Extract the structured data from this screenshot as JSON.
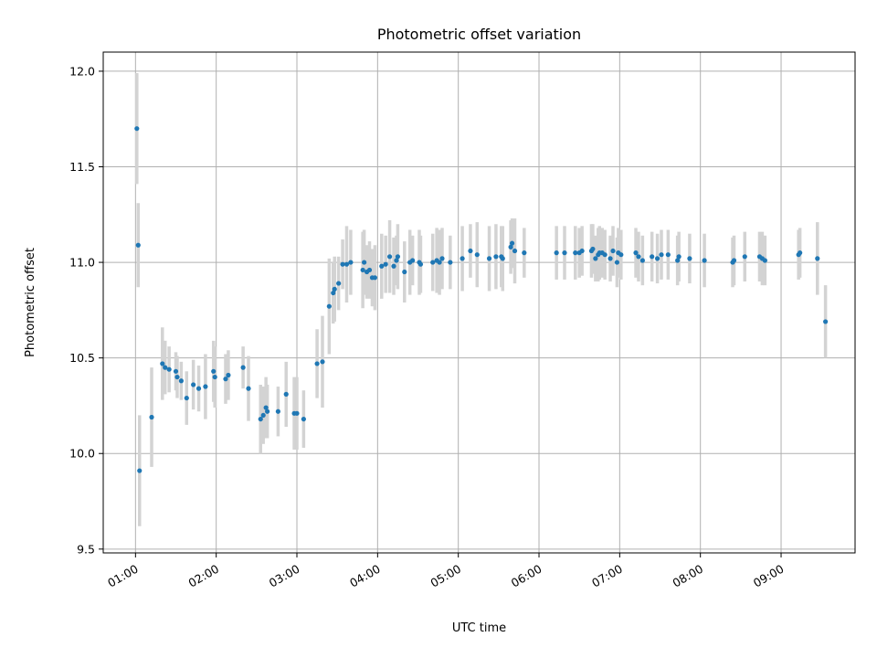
{
  "chart_data": {
    "type": "scatter",
    "title": "Photometric offset variation",
    "xlabel": "UTC time",
    "ylabel": "Photometric offset",
    "x_tick_labels": [
      "01:00",
      "02:00",
      "03:00",
      "04:00",
      "05:00",
      "06:00",
      "07:00",
      "08:00",
      "09:00"
    ],
    "y_tick_labels": [
      "9.5",
      "10.0",
      "10.5",
      "11.0",
      "11.5",
      "12.0"
    ],
    "xlim": [
      "00:36",
      "09:55"
    ],
    "ylim": [
      9.48,
      12.1
    ],
    "grid": true,
    "marker_color": "#1f77b4",
    "errorbar_color": "#d3d3d3",
    "points": [
      {
        "t": "01:01",
        "y": 11.7,
        "e": 0.29
      },
      {
        "t": "01:02",
        "y": 11.09,
        "e": 0.22
      },
      {
        "t": "01:03",
        "y": 9.91,
        "e": 0.29
      },
      {
        "t": "01:12",
        "y": 10.19,
        "e": 0.26
      },
      {
        "t": "01:20",
        "y": 10.47,
        "e": 0.19
      },
      {
        "t": "01:22",
        "y": 10.45,
        "e": 0.14
      },
      {
        "t": "01:25",
        "y": 10.44,
        "e": 0.12
      },
      {
        "t": "01:30",
        "y": 10.43,
        "e": 0.1
      },
      {
        "t": "01:31",
        "y": 10.4,
        "e": 0.11
      },
      {
        "t": "01:34",
        "y": 10.38,
        "e": 0.1
      },
      {
        "t": "01:38",
        "y": 10.29,
        "e": 0.14
      },
      {
        "t": "01:43",
        "y": 10.36,
        "e": 0.13
      },
      {
        "t": "01:47",
        "y": 10.34,
        "e": 0.12
      },
      {
        "t": "01:52",
        "y": 10.35,
        "e": 0.17
      },
      {
        "t": "01:58",
        "y": 10.43,
        "e": 0.16
      },
      {
        "t": "01:59",
        "y": 10.4,
        "e": 0.16
      },
      {
        "t": "02:07",
        "y": 10.39,
        "e": 0.13
      },
      {
        "t": "02:09",
        "y": 10.41,
        "e": 0.13
      },
      {
        "t": "02:20",
        "y": 10.45,
        "e": 0.11
      },
      {
        "t": "02:24",
        "y": 10.34,
        "e": 0.17
      },
      {
        "t": "02:33",
        "y": 10.18,
        "e": 0.18
      },
      {
        "t": "02:35",
        "y": 10.2,
        "e": 0.15
      },
      {
        "t": "02:37",
        "y": 10.24,
        "e": 0.16
      },
      {
        "t": "02:38",
        "y": 10.22,
        "e": 0.14
      },
      {
        "t": "02:46",
        "y": 10.22,
        "e": 0.13
      },
      {
        "t": "02:52",
        "y": 10.31,
        "e": 0.17
      },
      {
        "t": "02:58",
        "y": 10.21,
        "e": 0.19
      },
      {
        "t": "03:00",
        "y": 10.21,
        "e": 0.19
      },
      {
        "t": "03:05",
        "y": 10.18,
        "e": 0.15
      },
      {
        "t": "03:15",
        "y": 10.47,
        "e": 0.18
      },
      {
        "t": "03:19",
        "y": 10.48,
        "e": 0.24
      },
      {
        "t": "03:24",
        "y": 10.77,
        "e": 0.25
      },
      {
        "t": "03:27",
        "y": 10.84,
        "e": 0.16
      },
      {
        "t": "03:28",
        "y": 10.86,
        "e": 0.17
      },
      {
        "t": "03:31",
        "y": 10.89,
        "e": 0.14
      },
      {
        "t": "03:34",
        "y": 10.99,
        "e": 0.13
      },
      {
        "t": "03:37",
        "y": 10.99,
        "e": 0.2
      },
      {
        "t": "03:40",
        "y": 11.0,
        "e": 0.17
      },
      {
        "t": "03:49",
        "y": 10.96,
        "e": 0.2
      },
      {
        "t": "03:50",
        "y": 11.0,
        "e": 0.17
      },
      {
        "t": "03:52",
        "y": 10.95,
        "e": 0.14
      },
      {
        "t": "03:54",
        "y": 10.96,
        "e": 0.15
      },
      {
        "t": "03:56",
        "y": 10.92,
        "e": 0.15
      },
      {
        "t": "03:58",
        "y": 10.92,
        "e": 0.17
      },
      {
        "t": "04:03",
        "y": 10.98,
        "e": 0.17
      },
      {
        "t": "04:06",
        "y": 10.99,
        "e": 0.15
      },
      {
        "t": "04:09",
        "y": 11.03,
        "e": 0.19
      },
      {
        "t": "04:12",
        "y": 10.98,
        "e": 0.15
      },
      {
        "t": "04:14",
        "y": 11.01,
        "e": 0.13
      },
      {
        "t": "04:15",
        "y": 11.03,
        "e": 0.17
      },
      {
        "t": "04:20",
        "y": 10.95,
        "e": 0.16
      },
      {
        "t": "04:24",
        "y": 11.0,
        "e": 0.17
      },
      {
        "t": "04:26",
        "y": 11.01,
        "e": 0.13
      },
      {
        "t": "04:31",
        "y": 11.0,
        "e": 0.17
      },
      {
        "t": "04:32",
        "y": 10.99,
        "e": 0.15
      },
      {
        "t": "04:41",
        "y": 11.0,
        "e": 0.15
      },
      {
        "t": "04:44",
        "y": 11.01,
        "e": 0.17
      },
      {
        "t": "04:46",
        "y": 11.0,
        "e": 0.17
      },
      {
        "t": "04:48",
        "y": 11.02,
        "e": 0.16
      },
      {
        "t": "04:54",
        "y": 11.0,
        "e": 0.14
      },
      {
        "t": "05:03",
        "y": 11.02,
        "e": 0.17
      },
      {
        "t": "05:09",
        "y": 11.06,
        "e": 0.14
      },
      {
        "t": "05:14",
        "y": 11.04,
        "e": 0.17
      },
      {
        "t": "05:23",
        "y": 11.02,
        "e": 0.17
      },
      {
        "t": "05:28",
        "y": 11.03,
        "e": 0.17
      },
      {
        "t": "05:32",
        "y": 11.03,
        "e": 0.16
      },
      {
        "t": "05:33",
        "y": 11.02,
        "e": 0.17
      },
      {
        "t": "05:39",
        "y": 11.08,
        "e": 0.14
      },
      {
        "t": "05:40",
        "y": 11.1,
        "e": 0.13
      },
      {
        "t": "05:42",
        "y": 11.06,
        "e": 0.17
      },
      {
        "t": "05:49",
        "y": 11.05,
        "e": 0.13
      },
      {
        "t": "06:13",
        "y": 11.05,
        "e": 0.14
      },
      {
        "t": "06:19",
        "y": 11.05,
        "e": 0.14
      },
      {
        "t": "06:27",
        "y": 11.05,
        "e": 0.14
      },
      {
        "t": "06:30",
        "y": 11.05,
        "e": 0.13
      },
      {
        "t": "06:32",
        "y": 11.06,
        "e": 0.13
      },
      {
        "t": "06:39",
        "y": 11.06,
        "e": 0.14
      },
      {
        "t": "06:40",
        "y": 11.07,
        "e": 0.13
      },
      {
        "t": "06:42",
        "y": 11.02,
        "e": 0.12
      },
      {
        "t": "06:44",
        "y": 11.04,
        "e": 0.14
      },
      {
        "t": "06:45",
        "y": 11.05,
        "e": 0.14
      },
      {
        "t": "06:47",
        "y": 11.05,
        "e": 0.13
      },
      {
        "t": "06:49",
        "y": 11.04,
        "e": 0.13
      },
      {
        "t": "06:53",
        "y": 11.02,
        "e": 0.12
      },
      {
        "t": "06:55",
        "y": 11.06,
        "e": 0.13
      },
      {
        "t": "06:58",
        "y": 11.0,
        "e": 0.13
      },
      {
        "t": "06:59",
        "y": 11.05,
        "e": 0.13
      },
      {
        "t": "07:01",
        "y": 11.04,
        "e": 0.13
      },
      {
        "t": "07:12",
        "y": 11.05,
        "e": 0.13
      },
      {
        "t": "07:14",
        "y": 11.03,
        "e": 0.13
      },
      {
        "t": "07:17",
        "y": 11.01,
        "e": 0.13
      },
      {
        "t": "07:24",
        "y": 11.03,
        "e": 0.13
      },
      {
        "t": "07:28",
        "y": 11.02,
        "e": 0.13
      },
      {
        "t": "07:31",
        "y": 11.04,
        "e": 0.13
      },
      {
        "t": "07:36",
        "y": 11.04,
        "e": 0.13
      },
      {
        "t": "07:43",
        "y": 11.01,
        "e": 0.13
      },
      {
        "t": "07:44",
        "y": 11.03,
        "e": 0.13
      },
      {
        "t": "07:52",
        "y": 11.02,
        "e": 0.13
      },
      {
        "t": "08:03",
        "y": 11.01,
        "e": 0.14
      },
      {
        "t": "08:24",
        "y": 11.0,
        "e": 0.13
      },
      {
        "t": "08:25",
        "y": 11.01,
        "e": 0.13
      },
      {
        "t": "08:33",
        "y": 11.03,
        "e": 0.13
      },
      {
        "t": "08:44",
        "y": 11.03,
        "e": 0.13
      },
      {
        "t": "08:46",
        "y": 11.02,
        "e": 0.14
      },
      {
        "t": "08:48",
        "y": 11.01,
        "e": 0.13
      },
      {
        "t": "09:13",
        "y": 11.04,
        "e": 0.13
      },
      {
        "t": "09:14",
        "y": 11.05,
        "e": 0.13
      },
      {
        "t": "09:27",
        "y": 11.02,
        "e": 0.19
      },
      {
        "t": "09:33",
        "y": 10.69,
        "e": 0.19
      }
    ]
  }
}
